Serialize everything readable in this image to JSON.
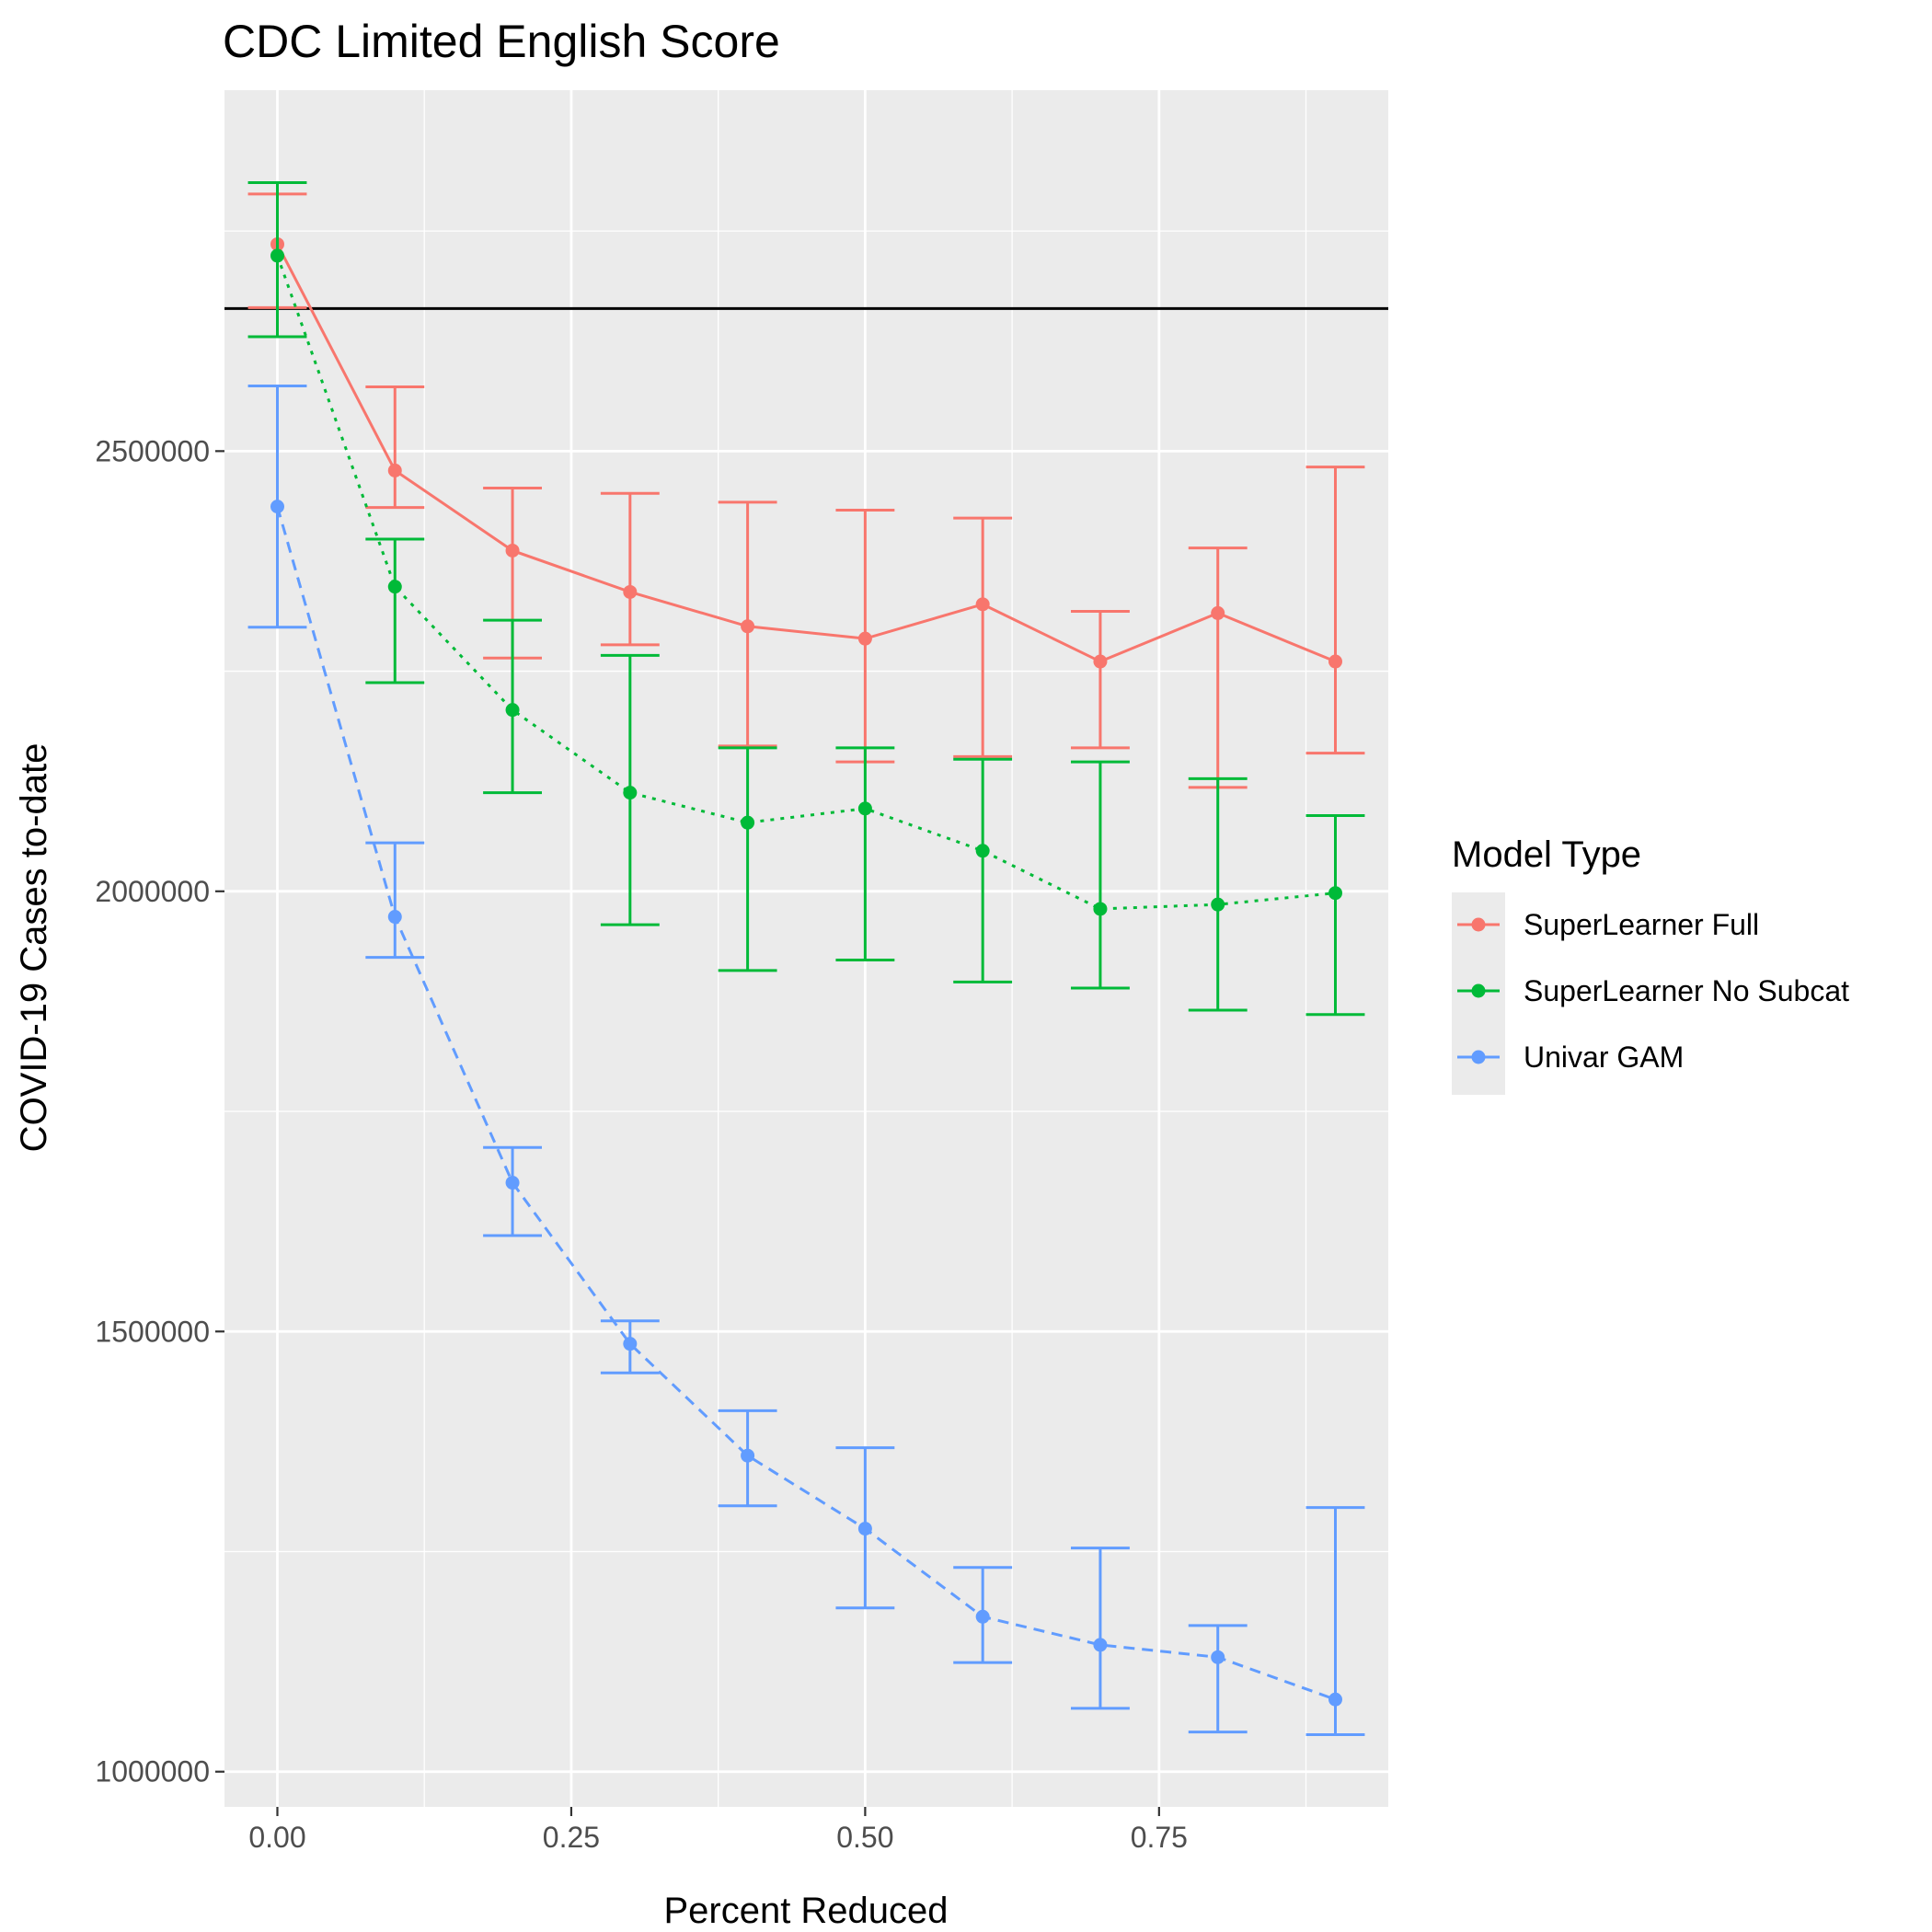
{
  "chart_data": {
    "type": "line",
    "title": "CDC Limited English Score",
    "xlabel": "Percent Reduced",
    "ylabel": "COVID-19 Cases to-date",
    "xlim": [
      -0.045,
      0.945
    ],
    "ylim": [
      960000,
      2910000
    ],
    "x_ticks": [
      0.0,
      0.25,
      0.5,
      0.75
    ],
    "x_tick_labels": [
      "0.00",
      "0.25",
      "0.50",
      "0.75"
    ],
    "y_ticks": [
      1000000,
      1500000,
      2000000,
      2500000
    ],
    "y_tick_labels": [
      "1000000",
      "1500000",
      "2000000",
      "2500000"
    ],
    "grid": true,
    "reference_line": {
      "y": 2662000,
      "color": "#000000"
    },
    "legend": {
      "title": "Model Type",
      "position": "right"
    },
    "x": [
      0.0,
      0.1,
      0.2,
      0.3,
      0.4,
      0.5,
      0.6,
      0.7,
      0.8,
      0.9
    ],
    "series": [
      {
        "name": "SuperLearner Full",
        "color": "#F8766D",
        "linetype": "solid",
        "values": [
          2735000,
          2478000,
          2387000,
          2340000,
          2301000,
          2287000,
          2326000,
          2261000,
          2316000,
          2261000
        ],
        "lower": [
          2663000,
          2436000,
          2265000,
          2280000,
          2165000,
          2147000,
          2153000,
          2163000,
          2118000,
          2157000
        ],
        "upper": [
          2792000,
          2573000,
          2458000,
          2452000,
          2442000,
          2433000,
          2424000,
          2318000,
          2390000,
          2482000
        ]
      },
      {
        "name": "SuperLearner No Subcat",
        "color": "#00BA38",
        "linetype": "dotted",
        "values": [
          2722000,
          2346000,
          2206000,
          2112000,
          2078000,
          2094000,
          2046000,
          1980000,
          1985000,
          1998000
        ],
        "lower": [
          2630000,
          2237000,
          2112000,
          1962000,
          1910000,
          1922000,
          1897000,
          1890000,
          1865000,
          1860000
        ],
        "upper": [
          2805000,
          2400000,
          2308000,
          2268000,
          2163000,
          2163000,
          2150000,
          2147000,
          2128000,
          2086000
        ]
      },
      {
        "name": "Univar GAM",
        "color": "#619CFF",
        "linetype": "dashed",
        "values": [
          2437000,
          1971000,
          1669000,
          1486000,
          1359000,
          1276000,
          1176000,
          1144000,
          1130000,
          1082000
        ],
        "lower": [
          2300000,
          1925000,
          1609000,
          1453000,
          1302000,
          1186000,
          1124000,
          1072000,
          1045000,
          1042000
        ],
        "upper": [
          2574000,
          2055000,
          1709000,
          1512000,
          1410000,
          1368000,
          1232000,
          1254000,
          1166000,
          1300000
        ]
      }
    ]
  }
}
